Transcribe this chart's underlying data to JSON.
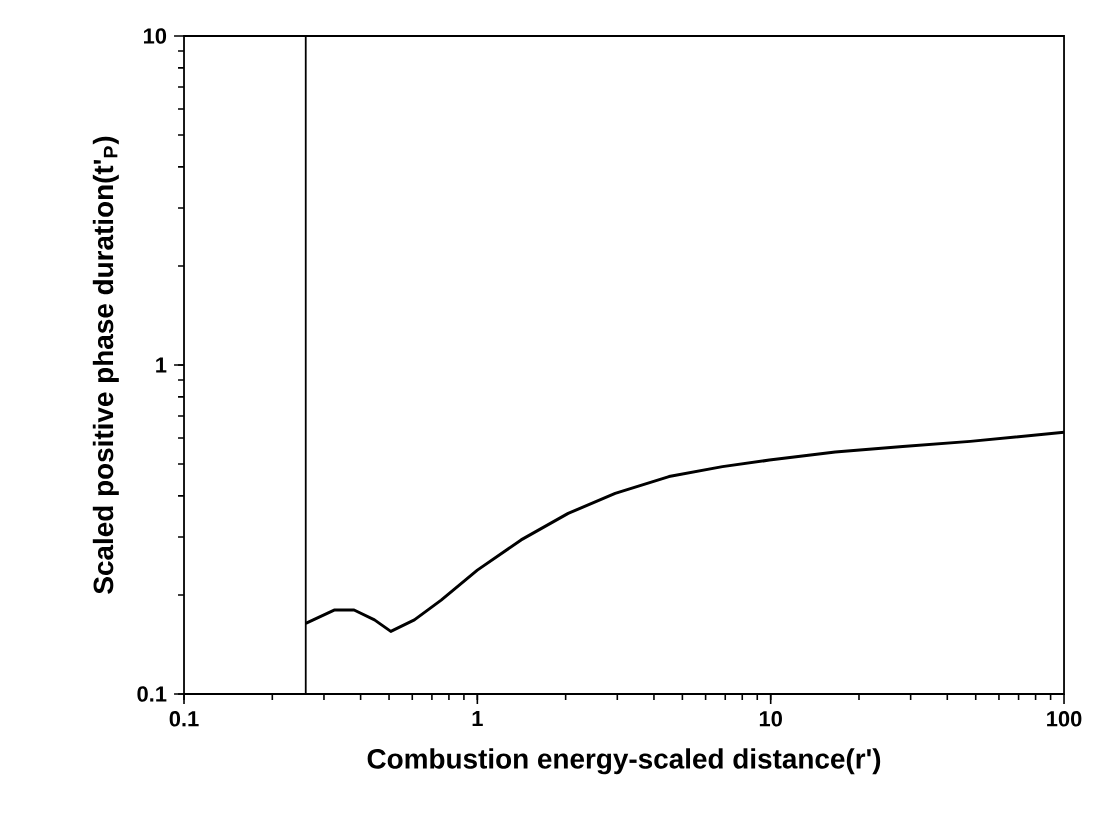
{
  "chart_data": {
    "type": "line",
    "xlabel": "Combustion energy-scaled distance(r')",
    "ylabel": "Scaled positive phase duration(t'$_{P}$)",
    "log": "xy",
    "xlim": [
      0.1,
      100
    ],
    "ylim": [
      0.1,
      10
    ],
    "xticks": [
      0.1,
      1,
      10,
      100
    ],
    "yticks": [
      0.1,
      1,
      10
    ],
    "ref_lines": [
      {
        "axis": "x",
        "value": 0.26,
        "color": "#000000"
      }
    ],
    "series": [
      {
        "color": "#000000",
        "x": [
          0.26,
          0.325,
          0.38,
          0.446,
          0.507,
          0.61,
          0.753,
          1.0,
          1.41,
          2.04,
          2.95,
          4.5,
          6.85,
          9.9,
          16.6,
          28.2,
          47.9,
          100
        ],
        "values": [
          0.164,
          0.18,
          0.18,
          0.168,
          0.155,
          0.168,
          0.193,
          0.238,
          0.294,
          0.354,
          0.407,
          0.458,
          0.491,
          0.514,
          0.544,
          0.565,
          0.586,
          0.625
        ]
      }
    ]
  }
}
